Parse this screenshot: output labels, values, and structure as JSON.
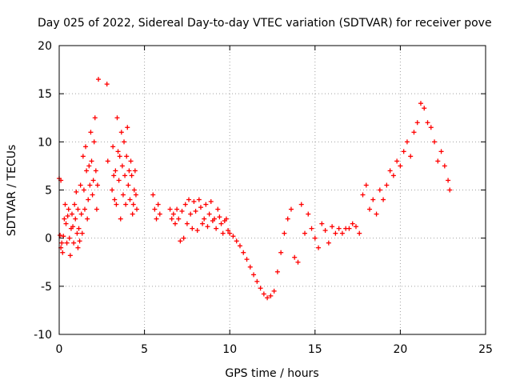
{
  "chart_data": {
    "type": "scatter",
    "title": "Day 025 of 2022, Sidereal Day-to-day VTEC variation (SDTVAR) for receiver pove",
    "xlabel": "GPS time / hours",
    "ylabel": "SDTVAR / TECUs",
    "xlim": [
      0,
      25
    ],
    "ylim": [
      -10,
      20
    ],
    "xticks": [
      0,
      5,
      10,
      15,
      20,
      25
    ],
    "yticks": [
      -10,
      -5,
      0,
      5,
      10,
      15,
      20
    ],
    "grid": true,
    "marker": "+",
    "colors": {
      "series": "#ff0000",
      "grid": "#a0a0a0",
      "axis": "#000000"
    },
    "series": [
      {
        "name": "SDTVAR",
        "x": [
          0.0,
          0.05,
          0.1,
          0.1,
          0.15,
          0.2,
          0.25,
          0.3,
          0.35,
          0.4,
          0.45,
          0.5,
          0.55,
          0.6,
          0.65,
          0.7,
          0.75,
          0.8,
          0.85,
          0.9,
          0.95,
          1.0,
          1.05,
          1.1,
          1.1,
          1.15,
          1.2,
          1.25,
          1.3,
          1.35,
          1.4,
          1.45,
          1.5,
          1.55,
          1.6,
          1.65,
          1.7,
          1.75,
          1.8,
          1.85,
          1.9,
          1.95,
          2.0,
          2.05,
          2.1,
          2.15,
          2.2,
          2.25,
          2.3,
          2.8,
          2.85,
          3.1,
          3.15,
          3.2,
          3.25,
          3.3,
          3.35,
          3.4,
          3.45,
          3.5,
          3.55,
          3.6,
          3.65,
          3.7,
          3.75,
          3.8,
          3.85,
          3.9,
          3.95,
          4.0,
          4.05,
          4.1,
          4.15,
          4.2,
          4.25,
          4.3,
          4.35,
          4.4,
          4.45,
          4.5,
          4.55,
          5.5,
          5.6,
          5.7,
          5.8,
          5.9,
          6.5,
          6.6,
          6.7,
          6.8,
          6.9,
          7.0,
          7.1,
          7.2,
          7.3,
          7.4,
          7.5,
          7.6,
          7.7,
          7.8,
          7.9,
          8.0,
          8.1,
          8.2,
          8.3,
          8.4,
          8.5,
          8.6,
          8.7,
          8.8,
          8.9,
          9.0,
          9.1,
          9.2,
          9.3,
          9.4,
          9.5,
          9.6,
          9.7,
          9.8,
          9.9,
          10.0,
          10.2,
          10.4,
          10.6,
          10.8,
          11.0,
          11.2,
          11.4,
          11.6,
          11.8,
          12.0,
          12.2,
          12.4,
          12.6,
          12.8,
          13.0,
          13.2,
          13.4,
          13.6,
          13.8,
          14.0,
          14.2,
          14.4,
          14.6,
          14.8,
          15.0,
          15.2,
          15.4,
          15.6,
          15.8,
          16.0,
          16.2,
          16.4,
          16.6,
          16.8,
          17.0,
          17.2,
          17.4,
          17.6,
          17.8,
          18.0,
          18.2,
          18.4,
          18.6,
          18.8,
          19.0,
          19.2,
          19.4,
          19.6,
          19.8,
          20.0,
          20.2,
          20.4,
          20.6,
          20.8,
          21.0,
          21.2,
          21.4,
          21.6,
          21.8,
          22.0,
          22.2,
          22.4,
          22.6,
          22.8,
          22.9
        ],
        "y": [
          6.2,
          0.3,
          -1.0,
          6.0,
          -0.5,
          -1.5,
          0.2,
          2.0,
          3.5,
          1.5,
          -0.5,
          2.3,
          3.0,
          0.0,
          -1.8,
          1.0,
          2.5,
          1.2,
          -0.5,
          3.5,
          2.0,
          4.8,
          0.5,
          -1.0,
          3.0,
          1.0,
          -0.3,
          5.5,
          2.5,
          0.5,
          8.5,
          5.0,
          3.0,
          9.5,
          7.0,
          2.0,
          4.0,
          7.5,
          5.5,
          11.0,
          8.0,
          4.5,
          6.0,
          10.0,
          12.5,
          7.0,
          3.0,
          5.5,
          16.5,
          16.0,
          8.0,
          5.0,
          9.5,
          6.5,
          4.0,
          7.0,
          3.5,
          12.5,
          9.0,
          6.0,
          8.5,
          2.0,
          11.0,
          7.5,
          4.5,
          10.0,
          6.5,
          3.5,
          8.5,
          11.5,
          5.5,
          7.0,
          4.0,
          8.0,
          6.5,
          2.5,
          3.5,
          5.0,
          7.0,
          4.5,
          3.0,
          4.5,
          3.0,
          2.0,
          3.5,
          2.5,
          3.0,
          2.0,
          2.5,
          1.5,
          3.0,
          2.0,
          -0.3,
          2.8,
          0.0,
          3.5,
          1.5,
          4.0,
          2.5,
          1.0,
          3.8,
          2.8,
          0.8,
          4.0,
          3.2,
          1.5,
          2.0,
          3.5,
          1.2,
          2.5,
          3.8,
          1.8,
          2.0,
          1.0,
          3.0,
          2.2,
          1.5,
          0.5,
          1.8,
          2.0,
          0.8,
          0.5,
          0.2,
          -0.3,
          -0.8,
          -1.5,
          -2.2,
          -3.0,
          -3.8,
          -4.5,
          -5.2,
          -5.8,
          -6.2,
          -6.0,
          -5.5,
          -3.5,
          -1.5,
          0.5,
          2.0,
          3.0,
          -2.0,
          -2.5,
          3.5,
          0.5,
          2.5,
          1.0,
          0.0,
          -1.0,
          1.5,
          0.8,
          -0.5,
          1.2,
          0.5,
          1.0,
          0.5,
          1.0,
          1.0,
          1.5,
          1.2,
          0.5,
          4.5,
          5.5,
          3.0,
          4.0,
          2.5,
          5.0,
          4.0,
          5.5,
          7.0,
          6.5,
          8.0,
          7.5,
          9.0,
          10.0,
          8.5,
          11.0,
          12.0,
          14.0,
          13.5,
          12.0,
          11.5,
          10.0,
          8.0,
          9.0,
          7.5,
          6.0,
          5.0
        ]
      }
    ]
  }
}
